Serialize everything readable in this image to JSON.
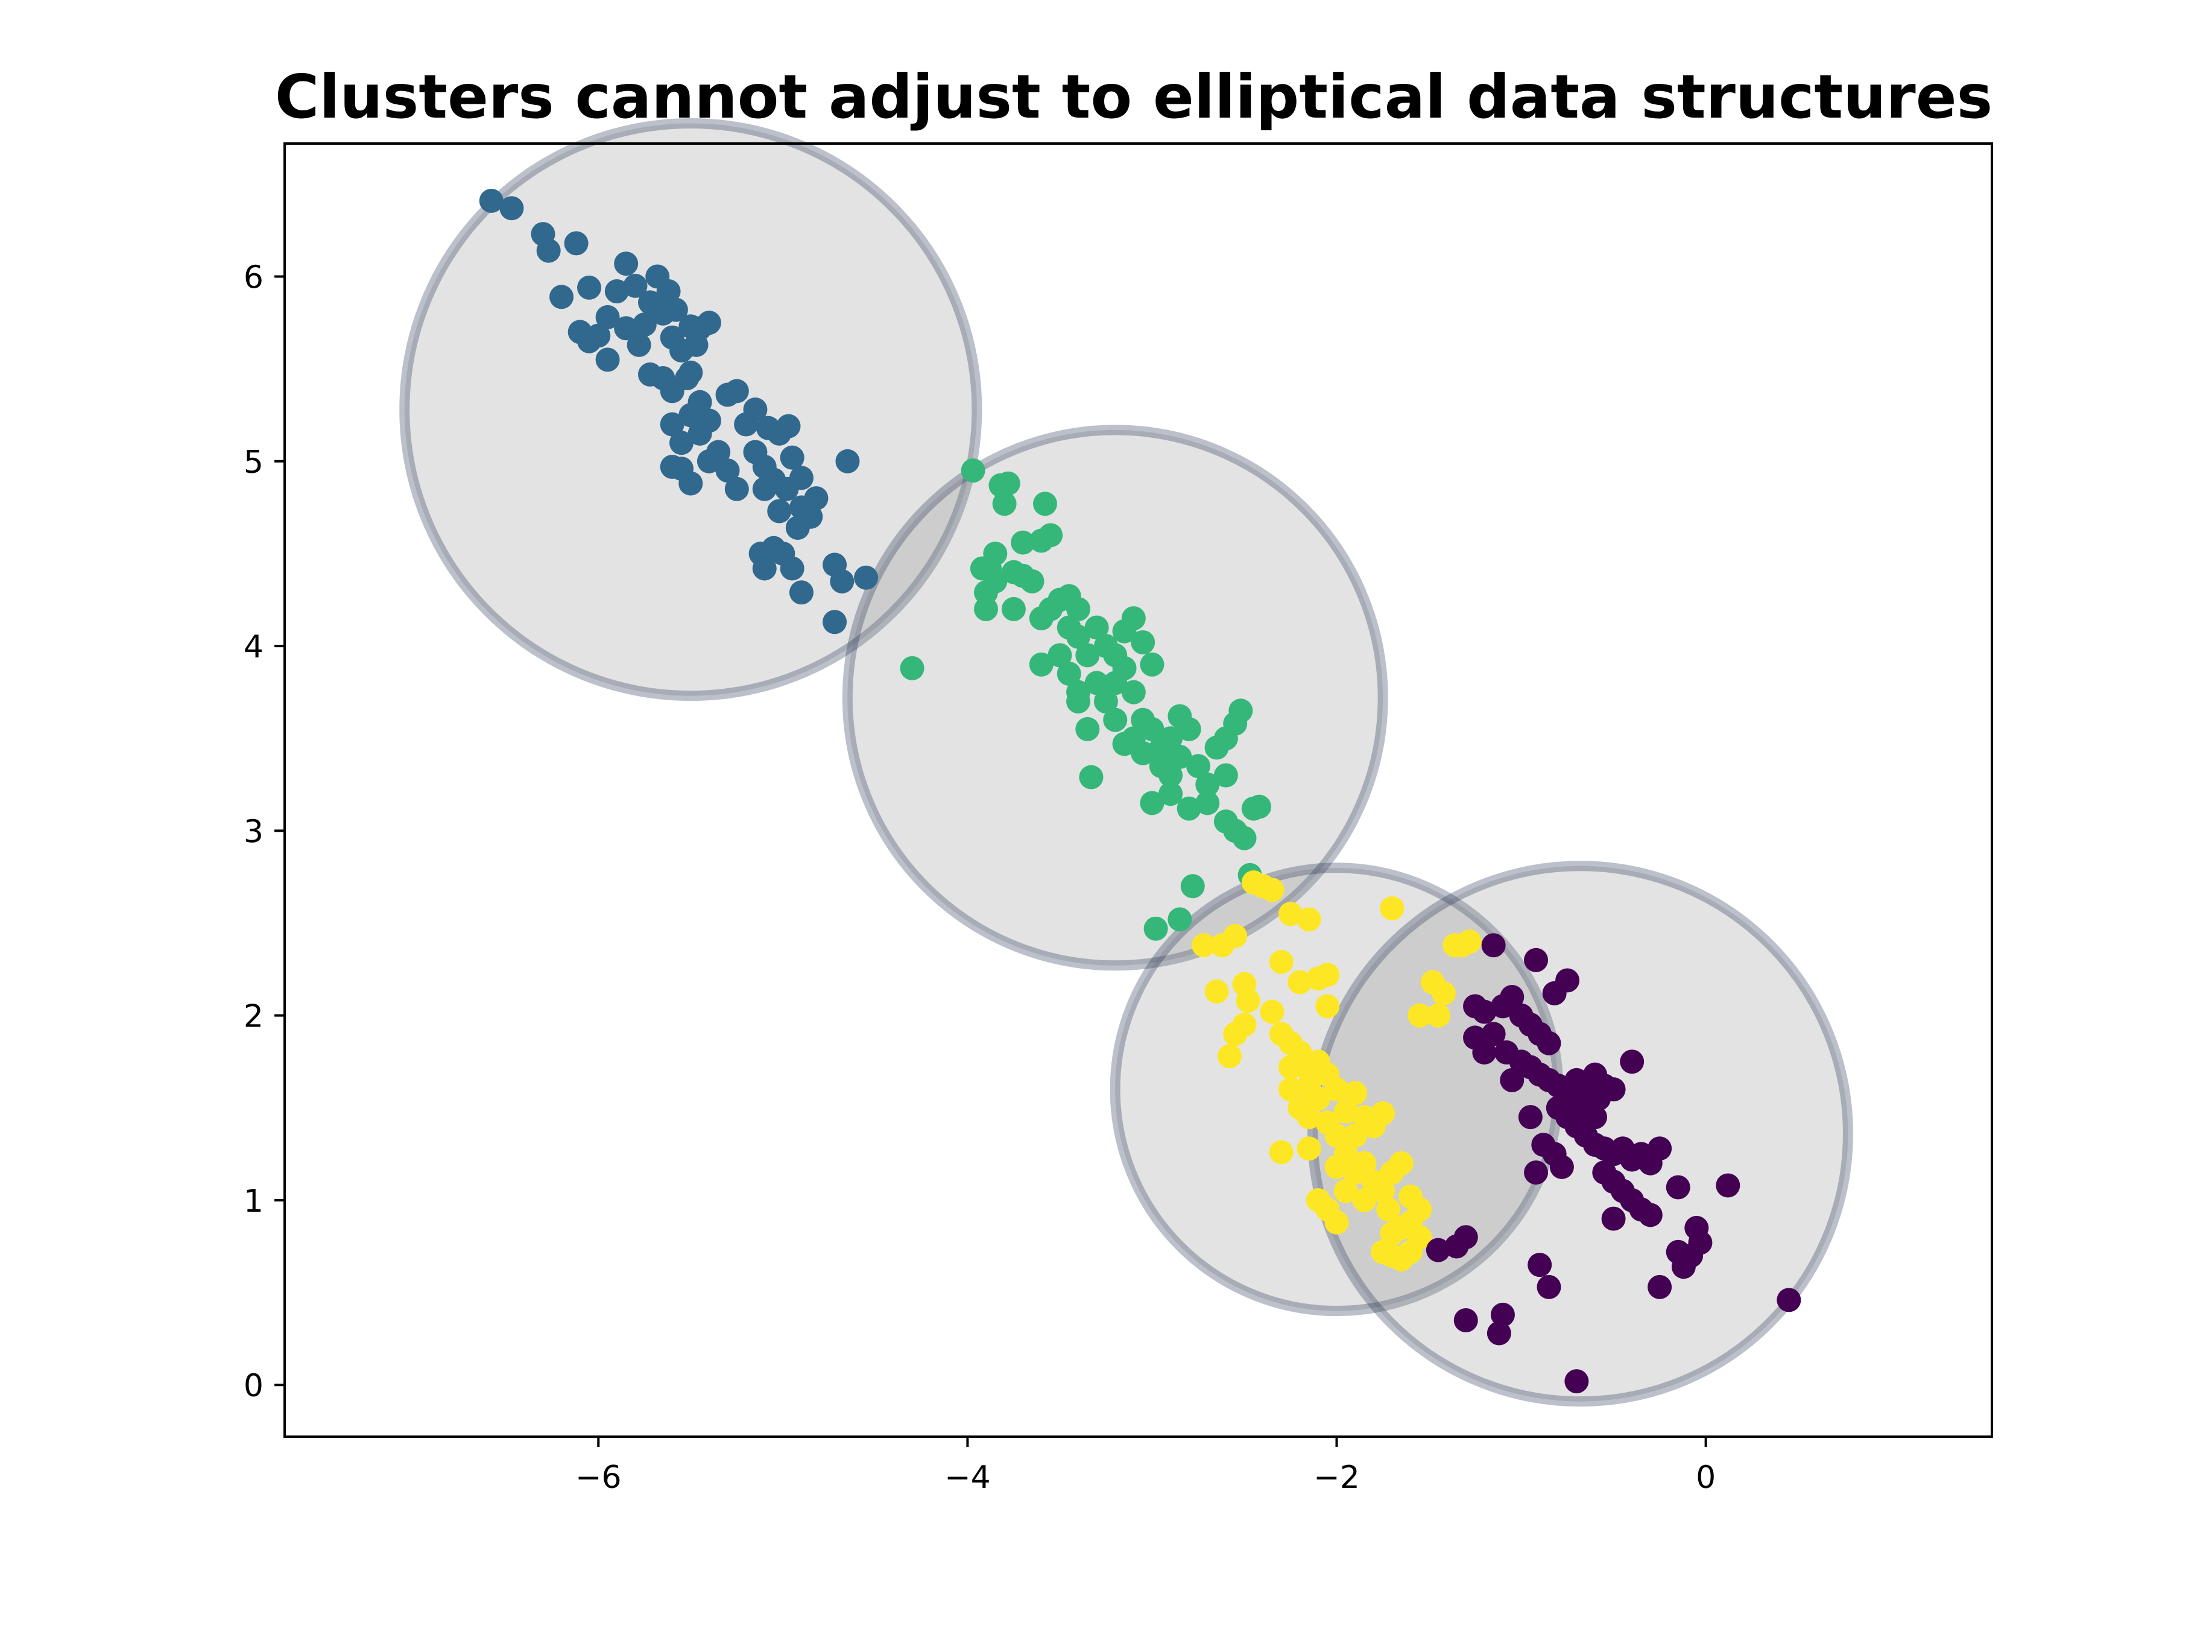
{
  "chart_data": {
    "type": "scatter",
    "title": "Clusters cannot adjust to elliptical data structures",
    "xlabel": "",
    "ylabel": "",
    "xlim": [
      -7.7,
      1.55
    ],
    "ylim": [
      -0.28,
      6.72
    ],
    "xticks": [
      -6,
      -4,
      -2,
      0
    ],
    "xtick_labels": [
      "−6",
      "−4",
      "−2",
      "0"
    ],
    "yticks": [
      0,
      1,
      2,
      3,
      4,
      5,
      6
    ],
    "ytick_labels": [
      "0",
      "1",
      "2",
      "3",
      "4",
      "5",
      "6"
    ],
    "grid": false,
    "legend": "none",
    "circles": [
      {
        "cx": -5.5,
        "cy": 5.28,
        "r": 1.55,
        "color": "#1f2f4f"
      },
      {
        "cx": -3.2,
        "cy": 3.72,
        "r": 1.45,
        "color": "#1f2f4f"
      },
      {
        "cx": -2.0,
        "cy": 1.6,
        "r": 1.2,
        "color": "#1f2f4f"
      },
      {
        "cx": -0.68,
        "cy": 1.36,
        "r": 1.45,
        "color": "#1f2f4f"
      }
    ],
    "series": [
      {
        "color": "#31688e",
        "points": [
          [
            -6.58,
            6.41
          ],
          [
            -6.47,
            6.37
          ],
          [
            -6.3,
            6.23
          ],
          [
            -6.27,
            6.14
          ],
          [
            -6.12,
            6.18
          ],
          [
            -6.2,
            5.89
          ],
          [
            -6.05,
            5.94
          ],
          [
            -6.1,
            5.7
          ],
          [
            -6.05,
            5.65
          ],
          [
            -5.95,
            5.78
          ],
          [
            -5.9,
            5.92
          ],
          [
            -5.85,
            6.07
          ],
          [
            -5.8,
            5.95
          ],
          [
            -5.75,
            5.74
          ],
          [
            -5.72,
            5.86
          ],
          [
            -5.68,
            6.0
          ],
          [
            -5.65,
            5.8
          ],
          [
            -5.62,
            5.92
          ],
          [
            -5.6,
            5.67
          ],
          [
            -5.58,
            5.82
          ],
          [
            -5.55,
            5.6
          ],
          [
            -5.5,
            5.73
          ],
          [
            -5.45,
            5.72
          ],
          [
            -5.4,
            5.75
          ],
          [
            -5.47,
            5.63
          ],
          [
            -5.52,
            5.45
          ],
          [
            -5.6,
            5.38
          ],
          [
            -5.65,
            5.45
          ],
          [
            -5.72,
            5.47
          ],
          [
            -5.78,
            5.63
          ],
          [
            -5.85,
            5.72
          ],
          [
            -5.95,
            5.55
          ],
          [
            -6.0,
            5.68
          ],
          [
            -5.5,
            5.48
          ],
          [
            -5.45,
            5.32
          ],
          [
            -5.4,
            5.22
          ],
          [
            -5.35,
            5.05
          ],
          [
            -5.3,
            5.36
          ],
          [
            -5.25,
            5.38
          ],
          [
            -5.2,
            5.2
          ],
          [
            -5.15,
            5.28
          ],
          [
            -5.08,
            5.18
          ],
          [
            -5.02,
            5.15
          ],
          [
            -4.97,
            5.19
          ],
          [
            -5.15,
            5.05
          ],
          [
            -5.1,
            4.97
          ],
          [
            -5.05,
            4.9
          ],
          [
            -4.98,
            4.85
          ],
          [
            -4.9,
            4.91
          ],
          [
            -4.85,
            4.7
          ],
          [
            -4.82,
            4.8
          ],
          [
            -4.9,
            4.75
          ],
          [
            -4.95,
            5.02
          ],
          [
            -5.1,
            4.85
          ],
          [
            -5.25,
            4.85
          ],
          [
            -5.3,
            4.95
          ],
          [
            -5.4,
            5.0
          ],
          [
            -5.5,
            4.88
          ],
          [
            -5.55,
            4.96
          ],
          [
            -5.6,
            4.97
          ],
          [
            -5.45,
            5.15
          ],
          [
            -5.55,
            5.1
          ],
          [
            -5.6,
            5.2
          ],
          [
            -5.5,
            5.25
          ],
          [
            -4.65,
            5.0
          ],
          [
            -5.02,
            4.73
          ],
          [
            -5.05,
            4.53
          ],
          [
            -5.0,
            4.5
          ],
          [
            -5.1,
            4.42
          ],
          [
            -4.95,
            4.42
          ],
          [
            -4.9,
            4.29
          ],
          [
            -4.72,
            4.44
          ],
          [
            -4.68,
            4.35
          ],
          [
            -4.72,
            4.13
          ],
          [
            -4.55,
            4.37
          ],
          [
            -4.92,
            4.64
          ],
          [
            -5.12,
            4.5
          ]
        ]
      },
      {
        "color": "#35b779",
        "points": [
          [
            -3.97,
            4.95
          ],
          [
            -3.82,
            4.87
          ],
          [
            -3.78,
            4.88
          ],
          [
            -3.8,
            4.77
          ],
          [
            -3.58,
            4.77
          ],
          [
            -3.6,
            4.57
          ],
          [
            -3.55,
            4.6
          ],
          [
            -3.7,
            4.56
          ],
          [
            -3.85,
            4.5
          ],
          [
            -3.88,
            4.42
          ],
          [
            -3.92,
            4.42
          ],
          [
            -3.9,
            4.29
          ],
          [
            -3.9,
            4.2
          ],
          [
            -3.85,
            4.35
          ],
          [
            -3.75,
            4.4
          ],
          [
            -3.65,
            4.35
          ],
          [
            -3.7,
            4.38
          ],
          [
            -3.55,
            4.2
          ],
          [
            -3.75,
            4.2
          ],
          [
            -3.6,
            4.15
          ],
          [
            -3.5,
            4.25
          ],
          [
            -3.45,
            4.27
          ],
          [
            -3.4,
            4.2
          ],
          [
            -3.45,
            4.1
          ],
          [
            -3.4,
            4.05
          ],
          [
            -3.35,
            3.95
          ],
          [
            -3.3,
            4.1
          ],
          [
            -3.25,
            4.0
          ],
          [
            -3.2,
            3.95
          ],
          [
            -3.15,
            4.08
          ],
          [
            -3.1,
            4.15
          ],
          [
            -3.05,
            4.02
          ],
          [
            -3.0,
            3.9
          ],
          [
            -3.5,
            3.95
          ],
          [
            -3.45,
            3.85
          ],
          [
            -3.4,
            3.75
          ],
          [
            -3.3,
            3.8
          ],
          [
            -3.25,
            3.7
          ],
          [
            -3.2,
            3.8
          ],
          [
            -3.15,
            3.88
          ],
          [
            -3.1,
            3.75
          ],
          [
            -3.05,
            3.6
          ],
          [
            -3.0,
            3.55
          ],
          [
            -2.95,
            3.45
          ],
          [
            -2.9,
            3.5
          ],
          [
            -2.85,
            3.62
          ],
          [
            -2.8,
            3.55
          ],
          [
            -3.1,
            3.5
          ],
          [
            -3.05,
            3.42
          ],
          [
            -2.95,
            3.35
          ],
          [
            -2.9,
            3.3
          ],
          [
            -2.85,
            3.4
          ],
          [
            -2.75,
            3.35
          ],
          [
            -2.7,
            3.25
          ],
          [
            -2.65,
            3.45
          ],
          [
            -2.6,
            3.5
          ],
          [
            -2.55,
            3.58
          ],
          [
            -2.52,
            3.65
          ],
          [
            -2.6,
            3.3
          ],
          [
            -2.7,
            3.15
          ],
          [
            -2.8,
            3.12
          ],
          [
            -2.9,
            3.2
          ],
          [
            -3.0,
            3.15
          ],
          [
            -2.55,
            3.0
          ],
          [
            -2.6,
            3.05
          ],
          [
            -2.45,
            3.12
          ],
          [
            -2.42,
            3.13
          ],
          [
            -2.5,
            2.96
          ],
          [
            -2.47,
            2.76
          ],
          [
            -3.33,
            3.29
          ],
          [
            -4.3,
            3.88
          ],
          [
            -3.15,
            3.47
          ],
          [
            -3.2,
            3.6
          ],
          [
            -2.78,
            2.7
          ],
          [
            -2.85,
            2.52
          ],
          [
            -2.98,
            2.47
          ],
          [
            -3.6,
            3.9
          ],
          [
            -3.4,
            3.7
          ],
          [
            -3.35,
            3.55
          ]
        ]
      },
      {
        "color": "#fde725",
        "points": [
          [
            -2.45,
            2.72
          ],
          [
            -2.4,
            2.7
          ],
          [
            -2.35,
            2.68
          ],
          [
            -2.25,
            2.55
          ],
          [
            -2.15,
            2.52
          ],
          [
            -1.7,
            2.58
          ],
          [
            -1.32,
            2.38
          ],
          [
            -1.28,
            2.4
          ],
          [
            -2.3,
            2.29
          ],
          [
            -2.2,
            2.18
          ],
          [
            -2.1,
            2.2
          ],
          [
            -2.05,
            2.05
          ],
          [
            -2.55,
            2.43
          ],
          [
            -2.62,
            2.38
          ],
          [
            -2.72,
            2.38
          ],
          [
            -2.65,
            2.13
          ],
          [
            -2.5,
            2.17
          ],
          [
            -2.48,
            2.08
          ],
          [
            -2.5,
            1.95
          ],
          [
            -2.55,
            1.9
          ],
          [
            -2.58,
            1.78
          ],
          [
            -2.35,
            2.02
          ],
          [
            -2.3,
            1.9
          ],
          [
            -2.25,
            1.85
          ],
          [
            -2.2,
            1.8
          ],
          [
            -2.15,
            1.7
          ],
          [
            -2.1,
            1.75
          ],
          [
            -2.05,
            1.68
          ],
          [
            -2.0,
            1.6
          ],
          [
            -2.25,
            1.6
          ],
          [
            -2.2,
            1.5
          ],
          [
            -2.15,
            1.45
          ],
          [
            -2.1,
            1.55
          ],
          [
            -2.05,
            1.42
          ],
          [
            -2.0,
            1.35
          ],
          [
            -1.95,
            1.48
          ],
          [
            -1.9,
            1.35
          ],
          [
            -1.85,
            1.45
          ],
          [
            -1.8,
            1.4
          ],
          [
            -1.75,
            1.47
          ],
          [
            -1.95,
            1.25
          ],
          [
            -2.0,
            1.18
          ],
          [
            -1.9,
            1.15
          ],
          [
            -1.85,
            1.2
          ],
          [
            -1.8,
            1.1
          ],
          [
            -1.75,
            1.05
          ],
          [
            -1.7,
            1.15
          ],
          [
            -1.65,
            1.2
          ],
          [
            -1.6,
            1.02
          ],
          [
            -1.55,
            0.95
          ],
          [
            -1.6,
            0.88
          ],
          [
            -1.65,
            0.85
          ],
          [
            -1.7,
            0.82
          ],
          [
            -1.55,
            0.8
          ],
          [
            -1.6,
            0.72
          ],
          [
            -1.65,
            0.68
          ],
          [
            -1.7,
            0.7
          ],
          [
            -1.75,
            0.72
          ],
          [
            -2.1,
            1.0
          ],
          [
            -2.05,
            0.95
          ],
          [
            -2.15,
            1.28
          ],
          [
            -2.3,
            1.26
          ],
          [
            -2.0,
            0.88
          ],
          [
            -1.55,
            2.0
          ],
          [
            -1.45,
            2.0
          ],
          [
            -1.48,
            2.18
          ],
          [
            -1.42,
            2.12
          ],
          [
            -1.36,
            2.38
          ],
          [
            -2.05,
            2.22
          ],
          [
            -1.9,
            1.58
          ],
          [
            -2.15,
            1.62
          ],
          [
            -2.25,
            1.72
          ],
          [
            -1.95,
            1.05
          ],
          [
            -1.85,
            1.0
          ],
          [
            -1.72,
            0.95
          ]
        ]
      },
      {
        "color": "#440154",
        "points": [
          [
            -1.15,
            2.38
          ],
          [
            -0.92,
            2.3
          ],
          [
            -0.75,
            2.19
          ],
          [
            -0.82,
            2.12
          ],
          [
            -1.25,
            2.05
          ],
          [
            -1.2,
            2.02
          ],
          [
            -1.1,
            2.05
          ],
          [
            -1.05,
            2.1
          ],
          [
            -1.0,
            2.0
          ],
          [
            -0.95,
            1.95
          ],
          [
            -0.9,
            1.9
          ],
          [
            -0.85,
            1.85
          ],
          [
            -1.15,
            1.9
          ],
          [
            -1.08,
            1.8
          ],
          [
            -1.0,
            1.75
          ],
          [
            -0.95,
            1.72
          ],
          [
            -0.9,
            1.68
          ],
          [
            -0.85,
            1.65
          ],
          [
            -0.8,
            1.62
          ],
          [
            -0.75,
            1.58
          ],
          [
            -0.7,
            1.65
          ],
          [
            -0.65,
            1.62
          ],
          [
            -0.6,
            1.68
          ],
          [
            -0.55,
            1.62
          ],
          [
            -0.5,
            1.6
          ],
          [
            -0.8,
            1.5
          ],
          [
            -0.75,
            1.45
          ],
          [
            -0.7,
            1.4
          ],
          [
            -0.65,
            1.35
          ],
          [
            -0.6,
            1.3
          ],
          [
            -0.55,
            1.28
          ],
          [
            -0.5,
            1.25
          ],
          [
            -0.45,
            1.28
          ],
          [
            -0.4,
            1.22
          ],
          [
            -0.35,
            1.25
          ],
          [
            -0.3,
            1.2
          ],
          [
            -0.25,
            1.28
          ],
          [
            -0.55,
            1.15
          ],
          [
            -0.5,
            1.1
          ],
          [
            -0.45,
            1.05
          ],
          [
            -0.4,
            1.0
          ],
          [
            -0.35,
            0.95
          ],
          [
            -0.3,
            0.92
          ],
          [
            -0.5,
            0.9
          ],
          [
            -0.4,
            1.75
          ],
          [
            -0.15,
            1.07
          ],
          [
            0.12,
            1.08
          ],
          [
            -0.15,
            0.72
          ],
          [
            -0.05,
            0.85
          ],
          [
            -0.08,
            0.7
          ],
          [
            -0.03,
            0.77
          ],
          [
            -0.12,
            0.64
          ],
          [
            -0.25,
            0.53
          ],
          [
            -0.9,
            0.65
          ],
          [
            -0.85,
            0.53
          ],
          [
            -1.1,
            0.38
          ],
          [
            -1.12,
            0.28
          ],
          [
            -1.3,
            0.35
          ],
          [
            -1.45,
            0.73
          ],
          [
            -1.35,
            0.75
          ],
          [
            -1.3,
            0.8
          ],
          [
            -0.7,
            0.02
          ],
          [
            0.45,
            0.46
          ],
          [
            -0.95,
            1.45
          ],
          [
            -0.88,
            1.3
          ],
          [
            -0.82,
            1.25
          ],
          [
            -0.78,
            1.18
          ],
          [
            -0.92,
            1.15
          ],
          [
            -1.25,
            1.88
          ],
          [
            -1.2,
            1.8
          ],
          [
            -1.05,
            1.65
          ],
          [
            -0.65,
            1.5
          ],
          [
            -0.6,
            1.45
          ],
          [
            -0.58,
            1.55
          ],
          [
            -0.7,
            1.55
          ]
        ]
      }
    ]
  }
}
